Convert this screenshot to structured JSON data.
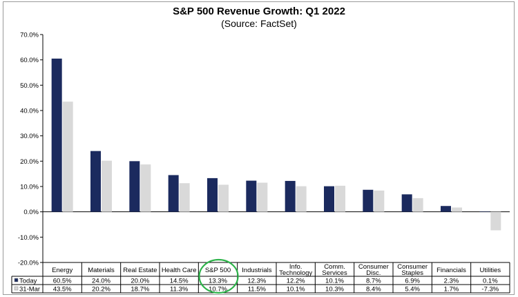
{
  "chart_data": {
    "type": "bar",
    "title": "S&P 500 Revenue Growth: Q1 2022",
    "subtitle": "(Source: FactSet)",
    "xlabel": "",
    "ylabel": "",
    "ylim": [
      -20,
      70
    ],
    "y_ticks": [
      "70.0%",
      "60.0%",
      "50.0%",
      "40.0%",
      "30.0%",
      "20.0%",
      "10.0%",
      "0.0%",
      "-10.0%",
      "-20.0%"
    ],
    "y_tick_values": [
      70,
      60,
      50,
      40,
      30,
      20,
      10,
      0,
      -10,
      -20
    ],
    "grid": false,
    "legend": "in-table",
    "categories": [
      [
        "Energy"
      ],
      [
        "Materials"
      ],
      [
        "Real Estate"
      ],
      [
        "Health Care"
      ],
      [
        "S&P 500"
      ],
      [
        "Industrials"
      ],
      [
        "Info.",
        "Technology"
      ],
      [
        "Comm.",
        "Services"
      ],
      [
        "Consumer",
        "Disc."
      ],
      [
        "Consumer",
        "Staples"
      ],
      [
        "Financials"
      ],
      [
        "Utilities"
      ]
    ],
    "series": [
      {
        "name": "Today",
        "color": "#1b2a5e",
        "values": [
          60.5,
          24.0,
          20.0,
          14.5,
          13.3,
          12.3,
          12.2,
          10.1,
          8.7,
          6.9,
          2.3,
          0.1
        ],
        "labels": [
          "60.5%",
          "24.0%",
          "20.0%",
          "14.5%",
          "13.3%",
          "12.3%",
          "12.2%",
          "10.1%",
          "8.7%",
          "6.9%",
          "2.3%",
          "0.1%"
        ]
      },
      {
        "name": "31-Mar",
        "color": "#d9d9d9",
        "values": [
          43.5,
          20.2,
          18.7,
          11.3,
          10.7,
          11.5,
          10.1,
          10.3,
          8.4,
          5.4,
          1.7,
          -7.3
        ],
        "labels": [
          "43.5%",
          "20.2%",
          "18.7%",
          "11.3%",
          "10.7%",
          "11.5%",
          "10.1%",
          "10.3%",
          "8.4%",
          "5.4%",
          "1.7%",
          "-7.3%"
        ]
      }
    ],
    "highlight": {
      "category_index": 4,
      "color": "#2db34a",
      "shape": "circle"
    }
  }
}
